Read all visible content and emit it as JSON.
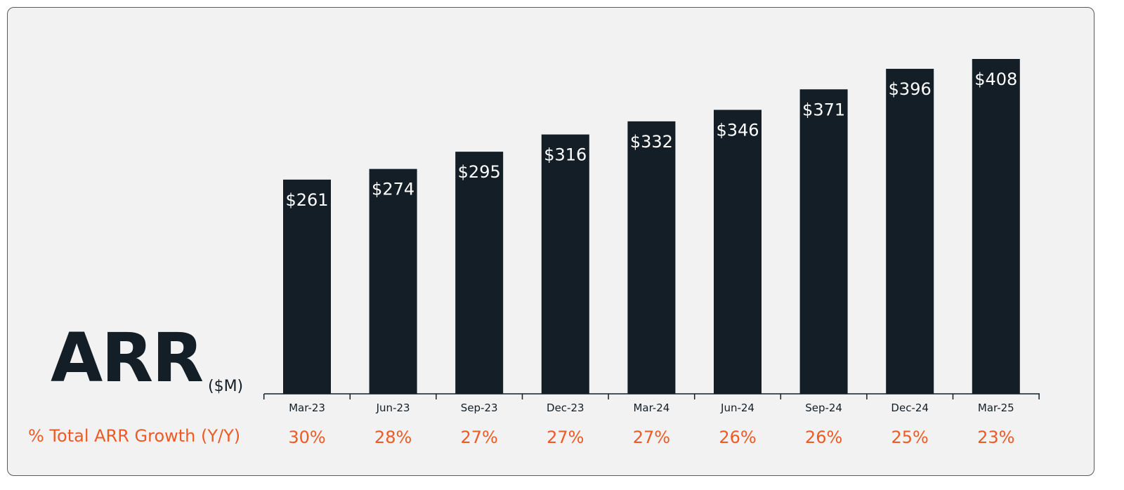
{
  "chart_data": {
    "type": "bar",
    "title": "ARR",
    "unit": "($M)",
    "categories": [
      "Mar-23",
      "Jun-23",
      "Sep-23",
      "Dec-23",
      "Mar-24",
      "Jun-24",
      "Sep-24",
      "Dec-24",
      "Mar-25"
    ],
    "values": [
      261,
      274,
      295,
      316,
      332,
      346,
      371,
      396,
      408
    ],
    "data_labels": [
      "$261",
      "$274",
      "$295",
      "$316",
      "$332",
      "$346",
      "$371",
      "$396",
      "$408"
    ],
    "growth_label": "% Total ARR Growth (Y/Y)",
    "growth_values": [
      "30%",
      "28%",
      "27%",
      "27%",
      "27%",
      "26%",
      "26%",
      "25%",
      "23%"
    ],
    "ylim": [
      0,
      408
    ],
    "grid": false,
    "colors": {
      "bar": "#131e26",
      "bar_label": "#ffffff",
      "growth": "#ee5a24",
      "background": "#f2f2f2"
    }
  }
}
